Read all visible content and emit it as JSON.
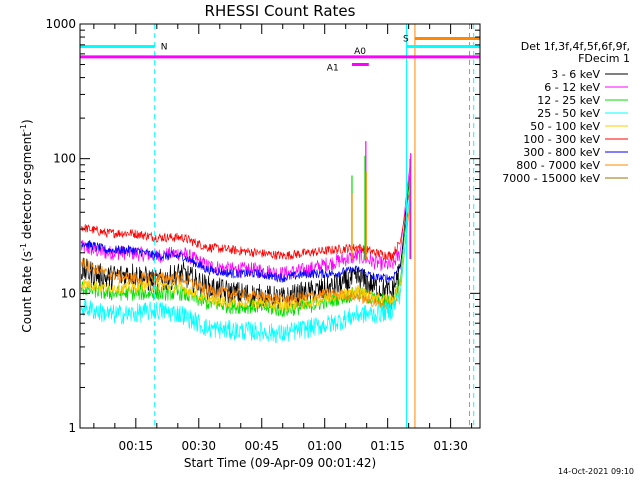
{
  "chart_data": {
    "type": "line",
    "title": "RHESSI Count Rates",
    "xlabel": "Start Time (09-Apr-09 00:01:42)",
    "ylabel_main": "Count Rate (s",
    "ylabel_sup1": "-1",
    "ylabel_mid": " detector segment",
    "ylabel_sup2": "-1",
    "ylabel_end": ")",
    "yscale": "log",
    "xlim_minutes": [
      1.7,
      97
    ],
    "ylim": [
      1,
      1000
    ],
    "x_ticks": [
      {
        "value": 15,
        "label": "00:15"
      },
      {
        "value": 30,
        "label": "00:30"
      },
      {
        "value": 45,
        "label": "00:45"
      },
      {
        "value": 60,
        "label": "01:00"
      },
      {
        "value": 75,
        "label": "01:15"
      },
      {
        "value": 90,
        "label": "01:30"
      }
    ],
    "y_ticks": [
      {
        "value": 1,
        "label": "1"
      },
      {
        "value": 10,
        "label": "10"
      },
      {
        "value": 100,
        "label": "100"
      },
      {
        "value": 1000,
        "label": "1000"
      }
    ],
    "legend_header": [
      "Det 1f,3f,4f,5f,6f,9f,",
      "FDecim 1"
    ],
    "legend_position": "right",
    "grid": false,
    "series": [
      {
        "name": "3 - 6 keV",
        "color": "#000000",
        "x": [
          2,
          8,
          14,
          20,
          26,
          32,
          38,
          44,
          50,
          56,
          62,
          68,
          70,
          72,
          76,
          78,
          79.5,
          80.5
        ],
        "values": [
          15,
          13,
          14,
          12,
          14,
          11,
          10,
          9.5,
          9,
          10,
          11,
          13,
          12,
          11,
          10,
          15,
          45,
          90
        ],
        "noise": 0.22
      },
      {
        "name": "6 - 12 keV",
        "color": "#ff00ff",
        "x": [
          2,
          8,
          14,
          20,
          26,
          32,
          38,
          44,
          50,
          56,
          62,
          68,
          70,
          72,
          76,
          78,
          79.5,
          80.5
        ],
        "values": [
          22,
          20,
          20,
          19,
          20,
          16,
          15,
          15,
          14,
          15,
          17,
          19,
          18,
          17,
          16,
          20,
          55,
          100
        ],
        "noise": 0.13
      },
      {
        "name": "12 - 25 keV",
        "color": "#00dd00",
        "x": [
          2,
          8,
          14,
          20,
          26,
          32,
          38,
          44,
          50,
          56,
          62,
          68,
          70,
          72,
          76,
          78,
          79.5,
          80.5
        ],
        "values": [
          11,
          10,
          10,
          10,
          10,
          8.5,
          8,
          8,
          7.5,
          8,
          9,
          10,
          9.5,
          9,
          8.5,
          12,
          40,
          85
        ],
        "noise": 0.13
      },
      {
        "name": "25 - 50 keV",
        "color": "#00ffff",
        "x": [
          2,
          8,
          14,
          20,
          26,
          32,
          38,
          44,
          50,
          56,
          62,
          68,
          70,
          72,
          76,
          78,
          79.5,
          80.5
        ],
        "values": [
          8,
          7,
          7,
          7.5,
          7,
          5.5,
          5.3,
          5.2,
          5,
          5.5,
          6,
          7,
          7,
          7,
          7.5,
          10,
          30,
          70
        ],
        "noise": 0.17
      },
      {
        "name": "50 - 100 keV",
        "color": "#ffcc00",
        "x": [
          2,
          8,
          14,
          20,
          26,
          32,
          38,
          44,
          50,
          56,
          62,
          68,
          70,
          72,
          76,
          78,
          79.5,
          80.5
        ],
        "values": [
          12,
          11,
          11,
          11.5,
          11,
          9,
          8.5,
          8.5,
          8,
          8.5,
          9.5,
          10.5,
          10,
          9.5,
          9,
          11,
          30,
          60
        ],
        "noise": 0.1
      },
      {
        "name": "100 - 300 keV",
        "color": "#ff0000",
        "x": [
          2,
          8,
          14,
          20,
          26,
          32,
          38,
          44,
          50,
          56,
          62,
          68,
          70,
          72,
          76,
          78,
          79.5,
          80.5
        ],
        "values": [
          31,
          28,
          28,
          26,
          26,
          22,
          21,
          20,
          19,
          20,
          21,
          22,
          21,
          20,
          19,
          24,
          45,
          60
        ],
        "noise": 0.08
      },
      {
        "name": "300 - 800 keV",
        "color": "#0000ff",
        "x": [
          2,
          8,
          14,
          20,
          26,
          32,
          38,
          44,
          50,
          56,
          62,
          68,
          70,
          72,
          76,
          78,
          79.5,
          80.5
        ],
        "values": [
          24,
          21,
          21,
          19,
          19,
          15,
          14,
          14,
          13,
          14,
          14,
          15,
          14,
          13,
          13,
          16,
          35,
          55
        ],
        "noise": 0.08
      },
      {
        "name": "800 - 7000 keV",
        "color": "#ff8800",
        "x": [
          2,
          8,
          14,
          20,
          26,
          32,
          38,
          44,
          50,
          56,
          62,
          68,
          70,
          72,
          76,
          78,
          79.5,
          80.5
        ],
        "values": [
          17,
          14,
          13,
          13,
          13,
          10.5,
          10,
          9.5,
          9,
          9.5,
          10,
          9.5,
          9,
          8.5,
          8,
          10,
          28,
          50
        ],
        "noise": 0.1
      },
      {
        "name": "7000 - 15000 keV",
        "color": "#a07000",
        "x": [
          2,
          80
        ],
        "values": [
          null,
          null
        ],
        "noise": 0
      }
    ],
    "spikes": [
      {
        "x": 66.5,
        "color": "#00dd00",
        "value": 75
      },
      {
        "x": 66.5,
        "color": "#ff8800",
        "value": 55
      },
      {
        "x": 69.8,
        "color": "#ff00ff",
        "value": 135
      },
      {
        "x": 69.6,
        "color": "#00dd00",
        "value": 105
      },
      {
        "x": 69.9,
        "color": "#ff8800",
        "value": 80
      },
      {
        "x": 80.3,
        "color": "#00dd00",
        "value": 100
      },
      {
        "x": 80.5,
        "color": "#ff00ff",
        "value": 110
      }
    ],
    "annotations": {
      "night_intervals": [
        {
          "label": "N",
          "start": 1.7,
          "end": 19.5,
          "value": 680,
          "color": "#00ffff"
        },
        {
          "label": "",
          "start": 79.5,
          "end": 97,
          "value": 680,
          "color": "#00ffff"
        }
      ],
      "attenuator_intervals": [
        {
          "label": "A0",
          "start": 1.7,
          "end": 97,
          "value": 570,
          "color": "#ff00ff",
          "label_x": 67,
          "label_side": "above"
        },
        {
          "label": "A1",
          "start": 66.5,
          "end": 70.5,
          "value": 500,
          "color": "#ff00ff",
          "label_x": 60.5,
          "label_side": "left"
        }
      ],
      "saa_intervals": [
        {
          "label": "S",
          "start": 81.5,
          "end": 97,
          "value": 780,
          "color": "#ff8800"
        }
      ],
      "vertical_markers": [
        {
          "x": 19.5,
          "color": "#00ffff",
          "style": "dashed"
        },
        {
          "x": 79.5,
          "color": "#00ffff",
          "style": "solid"
        },
        {
          "x": 95.5,
          "color": "#00ffff",
          "style": "dashed"
        },
        {
          "x": 81.5,
          "color": "#ff8800",
          "style": "solid"
        },
        {
          "x": 94.5,
          "color": "#ff8800",
          "style": "dashed"
        }
      ]
    },
    "timestamp": "14-Oct-2021 09:10"
  }
}
